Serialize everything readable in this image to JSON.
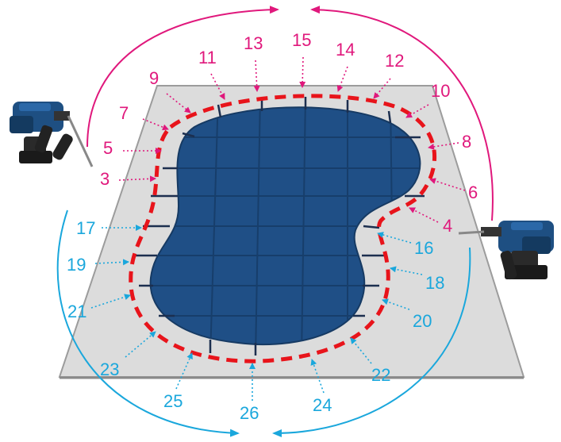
{
  "colors": {
    "magenta": "#e0187c",
    "cyan": "#1aa7dc",
    "pool": "#1f4f86",
    "pool_grid": "#173e6b",
    "deck": "#dcdcdc",
    "deck_edge": "#9c9c9c",
    "dash": "#e8141b",
    "strap": "#1c2f4f"
  },
  "icons": {
    "left_tool": "hammer-drill-icon",
    "right_tool": "hammer-drill-icon"
  },
  "labels": {
    "n3": "3",
    "n4": "4",
    "n5": "5",
    "n6": "6",
    "n7": "7",
    "n8": "8",
    "n9": "9",
    "n10": "10",
    "n11": "11",
    "n12": "12",
    "n13": "13",
    "n14": "14",
    "n15": "15",
    "n16": "16",
    "n17": "17",
    "n18": "18",
    "n19": "19",
    "n20": "20",
    "n21": "21",
    "n22": "22",
    "n23": "23",
    "n24": "24",
    "n25": "25",
    "n26": "26"
  }
}
